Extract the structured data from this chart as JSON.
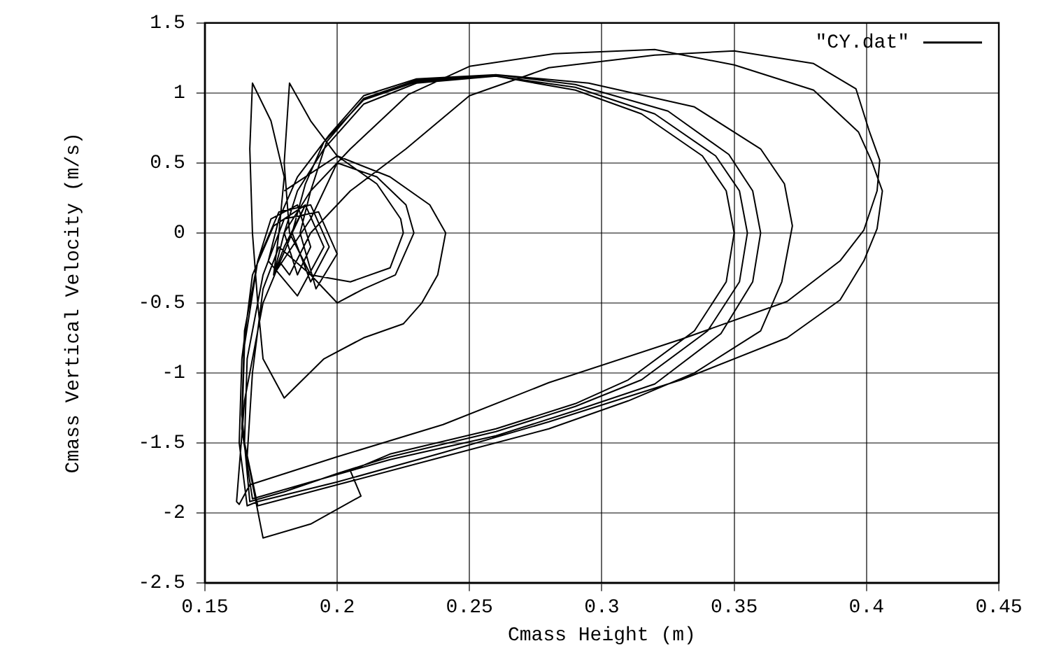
{
  "chart_data": {
    "type": "line",
    "xlabel": "Cmass Height (m)",
    "ylabel": "Cmass Vertical Velocity (m/s)",
    "xlim": [
      0.15,
      0.45
    ],
    "xticks": [
      0.15,
      0.2,
      0.25,
      0.3,
      0.35,
      0.4,
      0.45
    ],
    "ylim": [
      -2.5,
      1.5
    ],
    "yticks": [
      -2.5,
      -2,
      -1.5,
      -1,
      -0.5,
      0,
      0.5,
      1,
      1.5
    ],
    "grid": true,
    "legend": "top right",
    "marker": "none",
    "line_style": "solid",
    "series": [
      {
        "name": "\"CY.dat\"",
        "color": "#000000",
        "x": [
          0.18,
          0.2,
          0.22,
          0.235,
          0.241,
          0.238,
          0.232,
          0.225,
          0.21,
          0.195,
          0.18,
          0.172,
          0.17,
          0.168,
          0.167,
          0.168,
          0.175,
          0.18,
          0.178,
          0.176,
          0.19,
          0.2,
          0.215,
          0.226,
          0.229,
          0.222,
          0.21,
          0.2,
          0.19,
          0.182,
          0.18,
          0.182,
          0.19,
          0.2,
          0.215,
          0.224,
          0.225,
          0.22,
          0.205,
          0.19,
          0.178,
          0.172,
          0.168,
          0.166,
          0.172,
          0.19,
          0.209,
          0.205,
          0.22,
          0.26,
          0.29,
          0.31,
          0.335,
          0.347,
          0.35,
          0.347,
          0.338,
          0.315,
          0.29,
          0.26,
          0.23,
          0.21,
          0.195,
          0.185,
          0.18,
          0.185,
          0.19,
          0.185,
          0.175,
          0.17,
          0.165,
          0.164,
          0.167,
          0.18,
          0.2,
          0.22,
          0.26,
          0.29,
          0.315,
          0.34,
          0.352,
          0.355,
          0.352,
          0.343,
          0.32,
          0.29,
          0.26,
          0.23,
          0.21,
          0.195,
          0.188,
          0.183,
          0.19,
          0.197,
          0.19,
          0.178,
          0.17,
          0.165,
          0.164,
          0.168,
          0.19,
          0.22,
          0.26,
          0.29,
          0.32,
          0.345,
          0.357,
          0.36,
          0.357,
          0.348,
          0.325,
          0.29,
          0.26,
          0.23,
          0.21,
          0.196,
          0.19,
          0.186,
          0.192,
          0.2,
          0.193,
          0.18,
          0.172,
          0.166,
          0.165,
          0.17,
          0.2,
          0.24,
          0.28,
          0.31,
          0.335,
          0.36,
          0.368,
          0.372,
          0.369,
          0.36,
          0.335,
          0.295,
          0.26,
          0.23,
          0.21,
          0.197,
          0.185,
          0.178,
          0.174,
          0.185,
          0.195,
          0.188,
          0.176,
          0.168,
          0.164,
          0.163,
          0.166,
          0.17,
          0.2,
          0.24,
          0.28,
          0.33,
          0.37,
          0.39,
          0.399,
          0.404,
          0.406,
          0.402,
          0.397,
          0.38,
          0.35,
          0.32,
          0.282,
          0.25,
          0.227,
          0.205,
          0.19,
          0.18,
          0.176,
          0.18,
          0.188,
          0.183,
          0.172,
          0.165,
          0.162,
          0.163,
          0.167,
          0.2,
          0.24,
          0.28,
          0.33,
          0.37,
          0.39,
          0.399,
          0.404,
          0.405,
          0.401,
          0.396,
          0.38,
          0.35,
          0.32,
          0.28,
          0.25,
          0.226,
          0.205,
          0.19,
          0.182,
          0.178
        ],
        "values": [
          0.3,
          0.55,
          0.4,
          0.2,
          0.0,
          -0.3,
          -0.5,
          -0.65,
          -0.75,
          -0.9,
          -1.18,
          -0.9,
          -0.5,
          0.0,
          0.6,
          1.07,
          0.8,
          0.4,
          0.0,
          -0.3,
          0.1,
          0.5,
          0.4,
          0.2,
          0.0,
          -0.3,
          -0.4,
          -0.5,
          -0.3,
          0.0,
          0.5,
          1.07,
          0.8,
          0.55,
          0.35,
          0.1,
          0.0,
          -0.25,
          -0.35,
          -0.3,
          -0.1,
          -0.4,
          -1.0,
          -1.6,
          -2.18,
          -2.08,
          -1.88,
          -1.7,
          -1.58,
          -1.4,
          -1.22,
          -1.05,
          -0.7,
          -0.35,
          0.0,
          0.3,
          0.55,
          0.85,
          1.02,
          1.12,
          1.07,
          0.92,
          0.6,
          0.3,
          0.0,
          -0.3,
          -0.1,
          0.2,
          0.1,
          -0.2,
          -0.7,
          -1.3,
          -1.92,
          -1.85,
          -1.72,
          -1.6,
          -1.42,
          -1.24,
          -1.05,
          -0.7,
          -0.35,
          0.0,
          0.3,
          0.55,
          0.85,
          1.04,
          1.12,
          1.08,
          0.95,
          0.65,
          0.35,
          0.0,
          -0.35,
          -0.1,
          0.2,
          0.15,
          -0.2,
          -0.8,
          -1.4,
          -1.9,
          -1.78,
          -1.62,
          -1.45,
          -1.27,
          -1.08,
          -0.72,
          -0.35,
          0.0,
          0.3,
          0.56,
          0.87,
          1.06,
          1.13,
          1.09,
          0.96,
          0.65,
          0.3,
          0.0,
          -0.4,
          -0.15,
          0.15,
          0.1,
          -0.3,
          -0.9,
          -1.5,
          -1.95,
          -1.8,
          -1.6,
          -1.4,
          -1.2,
          -1.0,
          -0.7,
          -0.35,
          0.05,
          0.35,
          0.6,
          0.9,
          1.07,
          1.13,
          1.1,
          0.98,
          0.7,
          0.4,
          0.1,
          -0.2,
          -0.45,
          -0.1,
          0.2,
          0.05,
          -0.3,
          -0.9,
          -1.5,
          -1.95,
          -1.92,
          -1.78,
          -1.57,
          -1.35,
          -1.05,
          -0.75,
          -0.48,
          -0.2,
          0.03,
          0.3,
          0.51,
          0.72,
          1.02,
          1.2,
          1.31,
          1.28,
          1.19,
          0.99,
          0.6,
          0.3,
          0.0,
          -0.3,
          -0.1,
          0.2,
          0.0,
          -0.5,
          -1.2,
          -1.92,
          -1.94,
          -1.8,
          -1.6,
          -1.37,
          -1.07,
          -0.76,
          -0.49,
          -0.2,
          0.02,
          0.3,
          0.52,
          0.73,
          1.03,
          1.21,
          1.3,
          1.27,
          1.18,
          0.98,
          0.6,
          0.3,
          0.0,
          -0.3,
          -0.2
        ]
      }
    ]
  }
}
